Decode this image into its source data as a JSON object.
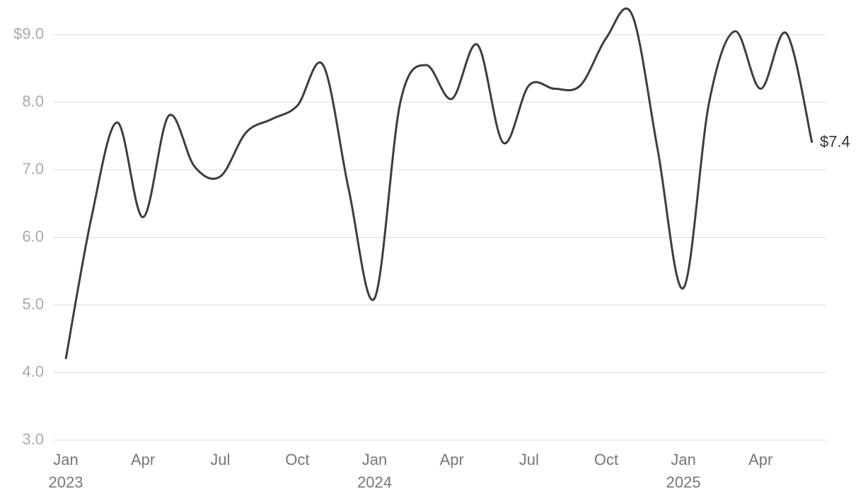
{
  "chart_data": {
    "type": "line",
    "categories": [
      "Jan 2023",
      null,
      null,
      "Apr",
      null,
      null,
      "Jul",
      null,
      null,
      "Oct",
      null,
      null,
      "Jan 2024",
      null,
      null,
      "Apr",
      null,
      null,
      "Jul",
      null,
      null,
      "Oct",
      null,
      null,
      "Jan 2025",
      null,
      null,
      "Apr",
      null,
      null
    ],
    "series": [
      {
        "color": "#3d3d3d",
        "values": [
          4.2,
          6.3,
          7.7,
          6.3,
          7.8,
          7.05,
          6.9,
          7.55,
          7.75,
          7.95,
          8.55,
          6.7,
          5.1,
          8.0,
          8.55,
          8.05,
          8.85,
          7.4,
          8.25,
          8.2,
          8.25,
          8.95,
          9.3,
          7.3,
          5.25,
          8.0,
          9.05,
          8.2,
          9.02,
          7.4
        ],
        "value_labels": [
          null,
          null,
          null,
          null,
          null,
          null,
          null,
          null,
          null,
          null,
          null,
          null,
          null,
          null,
          null,
          null,
          null,
          null,
          null,
          null,
          null,
          null,
          null,
          null,
          null,
          null,
          null,
          null,
          null,
          "$7.4"
        ]
      }
    ],
    "ylim": [
      3,
      9.3
    ],
    "yticks": [
      {
        "value": 3,
        "label": "3.0"
      },
      {
        "value": 4,
        "label": "4.0"
      },
      {
        "value": 5,
        "label": "5.0"
      },
      {
        "value": 6,
        "label": "6.0"
      },
      {
        "value": 7,
        "label": "7.0"
      },
      {
        "value": 8,
        "label": "8.0"
      },
      {
        "value": 9,
        "label": "$9.0"
      }
    ],
    "grid": true
  }
}
